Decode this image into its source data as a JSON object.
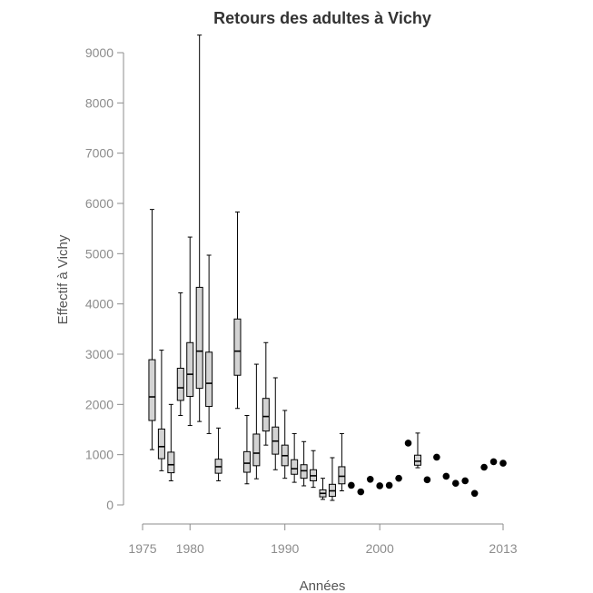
{
  "chart_data": {
    "type": "boxplot",
    "title": "Retours des adultes à Vichy",
    "xlabel": "Années",
    "ylabel": "Effectif à Vichy",
    "xlim": [
      1975,
      2013
    ],
    "ylim": [
      0,
      9000
    ],
    "x_ticks": [
      1975,
      1980,
      1990,
      2000,
      2013
    ],
    "y_ticks": [
      0,
      1000,
      2000,
      3000,
      4000,
      5000,
      6000,
      7000,
      8000,
      9000
    ],
    "grid": false,
    "colors": {
      "box_fill": "#d3d3d3",
      "stroke": "#000000",
      "point": "#000000"
    },
    "boxes": [
      {
        "x": 1976,
        "min": 1100,
        "q1": 1680,
        "median": 2150,
        "q3": 2890,
        "max": 5880
      },
      {
        "x": 1977,
        "min": 680,
        "q1": 920,
        "median": 1160,
        "q3": 1510,
        "max": 3080
      },
      {
        "x": 1978,
        "min": 480,
        "q1": 640,
        "median": 800,
        "q3": 1050,
        "max": 2000
      },
      {
        "x": 1979,
        "min": 1780,
        "q1": 2080,
        "median": 2330,
        "q3": 2720,
        "max": 4220
      },
      {
        "x": 1980,
        "min": 1580,
        "q1": 2160,
        "median": 2600,
        "q3": 3230,
        "max": 5330
      },
      {
        "x": 1981,
        "min": 1660,
        "q1": 2320,
        "median": 3060,
        "q3": 4330,
        "max": 9350
      },
      {
        "x": 1982,
        "min": 1420,
        "q1": 1960,
        "median": 2420,
        "q3": 3040,
        "max": 4970
      },
      {
        "x": 1983,
        "min": 480,
        "q1": 630,
        "median": 760,
        "q3": 910,
        "max": 1530
      },
      {
        "x": 1985,
        "min": 1920,
        "q1": 2580,
        "median": 3060,
        "q3": 3700,
        "max": 5830
      },
      {
        "x": 1986,
        "min": 420,
        "q1": 650,
        "median": 830,
        "q3": 1060,
        "max": 1780
      },
      {
        "x": 1987,
        "min": 520,
        "q1": 780,
        "median": 1030,
        "q3": 1410,
        "max": 2800
      },
      {
        "x": 1988,
        "min": 1190,
        "q1": 1470,
        "median": 1760,
        "q3": 2120,
        "max": 3230
      },
      {
        "x": 1989,
        "min": 700,
        "q1": 1010,
        "median": 1270,
        "q3": 1550,
        "max": 2530
      },
      {
        "x": 1990,
        "min": 530,
        "q1": 780,
        "median": 980,
        "q3": 1190,
        "max": 1880
      },
      {
        "x": 1991,
        "min": 450,
        "q1": 610,
        "median": 720,
        "q3": 900,
        "max": 1420
      },
      {
        "x": 1992,
        "min": 380,
        "q1": 530,
        "median": 680,
        "q3": 800,
        "max": 1260
      },
      {
        "x": 1993,
        "min": 350,
        "q1": 480,
        "median": 580,
        "q3": 700,
        "max": 1080
      },
      {
        "x": 1994,
        "min": 110,
        "q1": 160,
        "median": 230,
        "q3": 300,
        "max": 530
      },
      {
        "x": 1995,
        "min": 90,
        "q1": 170,
        "median": 280,
        "q3": 410,
        "max": 940
      },
      {
        "x": 1996,
        "min": 280,
        "q1": 420,
        "median": 570,
        "q3": 760,
        "max": 1420
      },
      {
        "x": 2004,
        "min": 740,
        "q1": 790,
        "median": 870,
        "q3": 990,
        "max": 1430
      }
    ],
    "points": [
      {
        "x": 1997,
        "y": 390
      },
      {
        "x": 1998,
        "y": 260
      },
      {
        "x": 1999,
        "y": 510
      },
      {
        "x": 2000,
        "y": 380
      },
      {
        "x": 2001,
        "y": 390
      },
      {
        "x": 2002,
        "y": 530
      },
      {
        "x": 2003,
        "y": 1230
      },
      {
        "x": 2005,
        "y": 500
      },
      {
        "x": 2006,
        "y": 950
      },
      {
        "x": 2007,
        "y": 570
      },
      {
        "x": 2008,
        "y": 430
      },
      {
        "x": 2009,
        "y": 480
      },
      {
        "x": 2010,
        "y": 230
      },
      {
        "x": 2011,
        "y": 750
      },
      {
        "x": 2012,
        "y": 860
      },
      {
        "x": 2013,
        "y": 830
      }
    ]
  }
}
